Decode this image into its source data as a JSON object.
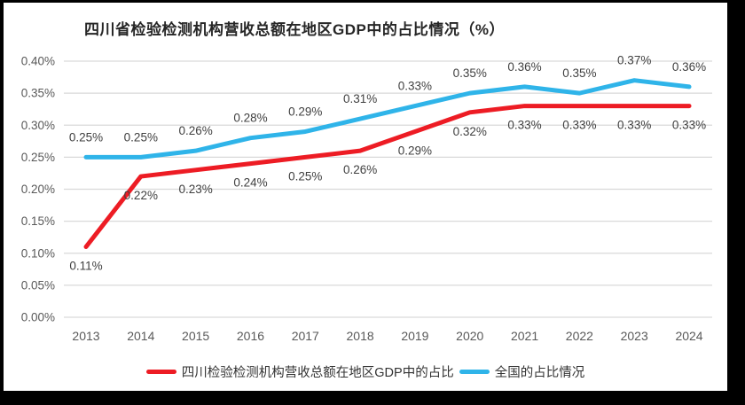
{
  "chart_data": {
    "type": "line",
    "title": "四川省检验检测机构营收总额在地区GDP中的占比情况（%）",
    "categories": [
      "2013",
      "2014",
      "2015",
      "2016",
      "2017",
      "2018",
      "2019",
      "2020",
      "2021",
      "2022",
      "2023",
      "2024"
    ],
    "series": [
      {
        "name": "四川检验检测机构营收总额在地区GDP中的占比",
        "color": "#ED1C24",
        "values": [
          0.11,
          0.22,
          0.23,
          0.24,
          0.25,
          0.26,
          0.29,
          0.32,
          0.33,
          0.33,
          0.33,
          0.33
        ],
        "labels": [
          "0.11%",
          "0.22%",
          "0.23%",
          "0.24%",
          "0.25%",
          "0.26%",
          "0.29%",
          "0.32%",
          "0.33%",
          "0.33%",
          "0.33%",
          "0.33%"
        ],
        "label_position": "below"
      },
      {
        "name": "全国的占比情况",
        "color": "#2FB4E9",
        "values": [
          0.25,
          0.25,
          0.26,
          0.28,
          0.29,
          0.31,
          0.33,
          0.35,
          0.36,
          0.35,
          0.37,
          0.36
        ],
        "labels": [
          "0.25%",
          "0.25%",
          "0.26%",
          "0.28%",
          "0.29%",
          "0.31%",
          "0.33%",
          "0.35%",
          "0.36%",
          "0.35%",
          "0.37%",
          "0.36%"
        ],
        "label_position": "above"
      }
    ],
    "y_ticks": [
      "0.40%",
      "0.35%",
      "0.30%",
      "0.25%",
      "0.20%",
      "0.15%",
      "0.10%",
      "0.05%",
      "0.00%"
    ],
    "ylim": [
      0.0,
      0.4
    ],
    "grid": true,
    "legend_position": "bottom",
    "colors": {
      "gridline": "#D9D9D9",
      "axis_tick_text": "#595959",
      "data_label_text": "#404040",
      "frame_background": "#000000",
      "panel_background": "#ffffff"
    }
  }
}
